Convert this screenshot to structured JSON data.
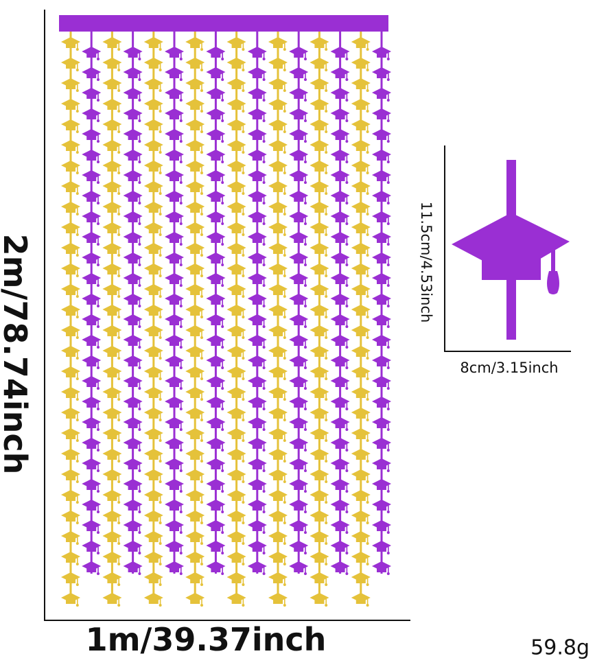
{
  "dimensions": {
    "curtain_height": "2m/78.74inch",
    "curtain_width": "1m/39.37inch",
    "piece_height": "11.5cm/4.53inch",
    "piece_width": "8cm/3.15inch",
    "weight": "59.8g"
  },
  "colors": {
    "gold": "#e5c23a",
    "purple": "#9a2fd3",
    "line": "#111111"
  },
  "icons": {
    "decoration": "graduation-cap-icon"
  }
}
